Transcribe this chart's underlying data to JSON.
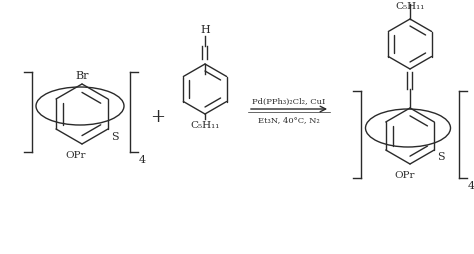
{
  "background_color": "#ffffff",
  "line_color": "#2a2a2a",
  "text_color": "#2a2a2a",
  "arrow_text_line1": "Pd(PPh₃)₂Cl₂, CuI",
  "arrow_text_line2": "Et₃N, 40°C, N₂",
  "plus_sign": "+",
  "subscript_4_left": "4",
  "subscript_4_right": "4",
  "label_br": "Br",
  "label_s_left": "S",
  "label_opr_left": "OPr",
  "label_h": "H",
  "label_c5h11_mid": "C₅H₁₁",
  "label_c5h11_top": "C₅H₁₁",
  "label_s_right": "S",
  "label_opr_right": "OPr"
}
